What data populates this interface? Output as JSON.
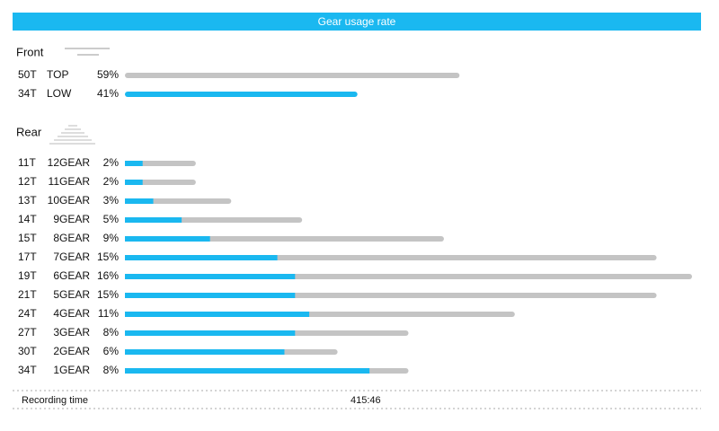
{
  "header": {
    "title": "Gear usage rate"
  },
  "front": {
    "label": "Front",
    "xlim": [
      0,
      100
    ],
    "rows": [
      {
        "chainring": "50T",
        "gear": "TOP",
        "percent": 59,
        "percent_label": "59%",
        "highlight": false
      },
      {
        "chainring": "34T",
        "gear": "LOW",
        "percent": 41,
        "percent_label": "41%",
        "highlight": true
      }
    ]
  },
  "rear": {
    "label": "Rear",
    "xlim": [
      0,
      16
    ],
    "rows": [
      {
        "cog": "11T",
        "gear": "12GEAR",
        "percent": 2,
        "percent_label": "2%",
        "low_percent": 0.5
      },
      {
        "cog": "12T",
        "gear": "11GEAR",
        "percent": 2,
        "percent_label": "2%",
        "low_percent": 0.5
      },
      {
        "cog": "13T",
        "gear": "10GEAR",
        "percent": 3,
        "percent_label": "3%",
        "low_percent": 0.8
      },
      {
        "cog": "14T",
        "gear": "9GEAR",
        "percent": 5,
        "percent_label": "5%",
        "low_percent": 1.6
      },
      {
        "cog": "15T",
        "gear": "8GEAR",
        "percent": 9,
        "percent_label": "9%",
        "low_percent": 2.4
      },
      {
        "cog": "17T",
        "gear": "7GEAR",
        "percent": 15,
        "percent_label": "15%",
        "low_percent": 4.3
      },
      {
        "cog": "19T",
        "gear": "6GEAR",
        "percent": 16,
        "percent_label": "16%",
        "low_percent": 4.8
      },
      {
        "cog": "21T",
        "gear": "5GEAR",
        "percent": 15,
        "percent_label": "15%",
        "low_percent": 4.8
      },
      {
        "cog": "24T",
        "gear": "4GEAR",
        "percent": 11,
        "percent_label": "11%",
        "low_percent": 5.2
      },
      {
        "cog": "27T",
        "gear": "3GEAR",
        "percent": 8,
        "percent_label": "8%",
        "low_percent": 4.8
      },
      {
        "cog": "30T",
        "gear": "2GEAR",
        "percent": 6,
        "percent_label": "6%",
        "low_percent": 4.5
      },
      {
        "cog": "34T",
        "gear": "1GEAR",
        "percent": 8,
        "percent_label": "8%",
        "low_percent": 6.9
      }
    ]
  },
  "footer": {
    "label": "Recording time",
    "value": "415:46"
  }
}
